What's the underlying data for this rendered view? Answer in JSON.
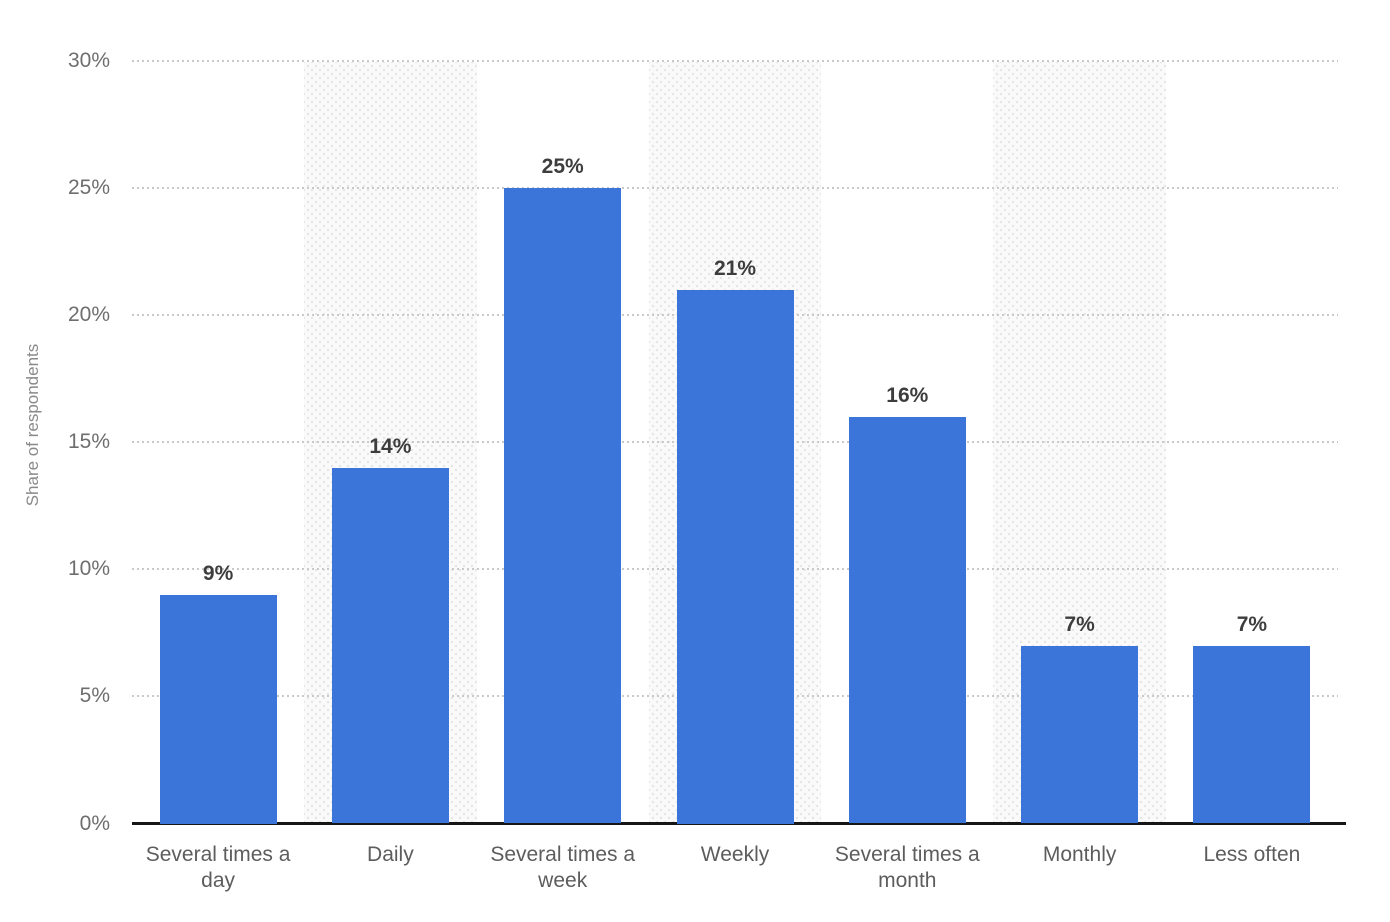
{
  "chart_data": {
    "type": "bar",
    "title": "",
    "xlabel": "",
    "ylabel": "Share of respondents",
    "categories": [
      "Several times a day",
      "Daily",
      "Several times a week",
      "Weekly",
      "Several times a month",
      "Monthly",
      "Less often"
    ],
    "values": [
      9,
      14,
      25,
      21,
      16,
      7,
      7
    ],
    "value_labels": [
      "9%",
      "14%",
      "25%",
      "21%",
      "16%",
      "7%",
      "7%"
    ],
    "yticks": [
      "0%",
      "5%",
      "10%",
      "15%",
      "20%",
      "25%",
      "30%"
    ],
    "ytick_values": [
      0,
      5,
      10,
      15,
      20,
      25,
      30
    ],
    "ylim": [
      0,
      30
    ],
    "grid": "horizontal-dotted",
    "legend": "none",
    "striped_band_indices": [
      1,
      3,
      5
    ]
  },
  "colors": {
    "bar": "#3C75D9",
    "bar_value_label": "#3d3d3d",
    "axis_tick_label": "#6e6e6e",
    "category_label": "#5d5d5d",
    "y_axis_title": "#8a8a8a",
    "gridline": "#c9c9c9",
    "baseline": "#161616",
    "band_background": "#fafafa",
    "band_dot": "#e5e5e5",
    "page_background": "#ffffff"
  }
}
